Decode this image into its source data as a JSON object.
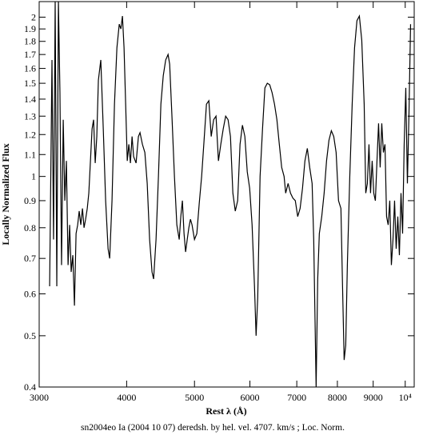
{
  "chart_data": {
    "type": "line",
    "caption": "sn2004eo Ia (2004 10 07) deredsh. by hel. vel.  4707. km/s ;  Loc. Norm.",
    "x_label": "Rest λ (Å)",
    "y_label": "Locally Normalized Flux",
    "xscale": "log",
    "yscale": "log",
    "color": "#000000",
    "xlim": [
      3000,
      10300
    ],
    "ylim": [
      0.4,
      2.14
    ],
    "xticks": [
      3000,
      4000,
      5000,
      6000,
      7000,
      8000,
      9000,
      {
        "value": 10000,
        "label": "10⁴"
      }
    ],
    "yticks": [
      0.4,
      0.5,
      0.6,
      0.7,
      0.8,
      0.9,
      1,
      1.1,
      1.2,
      1.3,
      1.4,
      1.5,
      1.6,
      1.7,
      1.8,
      1.9,
      2
    ],
    "x": [
      3105,
      3129,
      3145,
      3162,
      3179,
      3196,
      3212,
      3229,
      3247,
      3264,
      3281,
      3299,
      3316,
      3333,
      3351,
      3369,
      3387,
      3405,
      3422,
      3440,
      3459,
      3477,
      3495,
      3514,
      3532,
      3551,
      3570,
      3588,
      3607,
      3626,
      3645,
      3674,
      3704,
      3733,
      3763,
      3783,
      3812,
      3843,
      3874,
      3904,
      3925,
      3945,
      3966,
      3987,
      4008,
      4029,
      4050,
      4072,
      4093,
      4126,
      4158,
      4180,
      4213,
      4247,
      4280,
      4314,
      4348,
      4371,
      4406,
      4441,
      4477,
      4512,
      4548,
      4584,
      4608,
      4645,
      4681,
      4718,
      4755,
      4780,
      4805,
      4831,
      4856,
      4882,
      4908,
      4934,
      4960,
      5000,
      5039,
      5079,
      5119,
      5160,
      5201,
      5242,
      5283,
      5325,
      5367,
      5410,
      5452,
      5496,
      5540,
      5584,
      5628,
      5673,
      5718,
      5763,
      5808,
      5854,
      5901,
      5948,
      5995,
      6043,
      6091,
      6123,
      6156,
      6204,
      6254,
      6303,
      6353,
      6404,
      6454,
      6505,
      6557,
      6609,
      6661,
      6714,
      6749,
      6803,
      6857,
      6911,
      6966,
      7021,
      7077,
      7133,
      7190,
      7247,
      7304,
      7362,
      7401,
      7460,
      7499,
      7539,
      7599,
      7659,
      7720,
      7781,
      7843,
      7905,
      7967,
      8030,
      8094,
      8137,
      8180,
      8223,
      8267,
      8333,
      8399,
      8465,
      8532,
      8600,
      8668,
      8737,
      8783,
      8829,
      8876,
      8922,
      8970,
      9017,
      9065,
      9113,
      9161,
      9209,
      9258,
      9307,
      9356,
      9405,
      9455,
      9505,
      9555,
      9606,
      9656,
      9707,
      9759,
      9810,
      9862,
      9914,
      9966,
      10019,
      10072,
      10125,
      10178
    ],
    "values": [
      0.62,
      1.66,
      0.76,
      2.14,
      0.62,
      2.14,
      1.44,
      0.68,
      1.28,
      0.9,
      1.07,
      0.68,
      0.81,
      0.66,
      0.71,
      0.57,
      0.78,
      0.81,
      0.86,
      0.81,
      0.87,
      0.8,
      0.83,
      0.87,
      0.93,
      1.07,
      1.23,
      1.28,
      1.06,
      1.19,
      1.52,
      1.66,
      1.23,
      0.9,
      0.73,
      0.7,
      0.9,
      1.37,
      1.75,
      1.94,
      1.9,
      2.01,
      1.75,
      1.37,
      1.07,
      1.15,
      1.06,
      1.19,
      1.09,
      1.06,
      1.19,
      1.21,
      1.15,
      1.11,
      0.97,
      0.76,
      0.66,
      0.64,
      0.76,
      1.0,
      1.37,
      1.55,
      1.66,
      1.7,
      1.63,
      1.28,
      1.0,
      0.81,
      0.76,
      0.84,
      0.9,
      0.78,
      0.72,
      0.76,
      0.8,
      0.83,
      0.81,
      0.76,
      0.78,
      0.89,
      1.0,
      1.17,
      1.37,
      1.39,
      1.19,
      1.28,
      1.3,
      1.07,
      1.15,
      1.23,
      1.3,
      1.28,
      1.19,
      0.93,
      0.86,
      0.9,
      1.15,
      1.25,
      1.19,
      1.02,
      0.95,
      0.81,
      0.62,
      0.5,
      0.59,
      1.0,
      1.23,
      1.47,
      1.5,
      1.49,
      1.44,
      1.37,
      1.28,
      1.15,
      1.04,
      1.0,
      0.93,
      0.97,
      0.93,
      0.91,
      0.9,
      0.84,
      0.87,
      0.95,
      1.07,
      1.13,
      1.04,
      0.97,
      0.76,
      0.4,
      0.64,
      0.78,
      0.84,
      0.93,
      1.07,
      1.17,
      1.22,
      1.19,
      1.11,
      0.9,
      0.87,
      0.62,
      0.45,
      0.48,
      0.68,
      1.0,
      1.37,
      1.75,
      1.97,
      2.01,
      1.81,
      1.37,
      0.93,
      0.97,
      1.15,
      0.93,
      1.07,
      0.93,
      0.9,
      1.07,
      1.26,
      1.04,
      1.26,
      1.11,
      1.15,
      0.84,
      0.81,
      0.9,
      0.68,
      0.76,
      0.9,
      0.73,
      0.84,
      0.71,
      0.93,
      0.78,
      1.15,
      1.47,
      0.97,
      1.32,
      1.94
    ]
  }
}
